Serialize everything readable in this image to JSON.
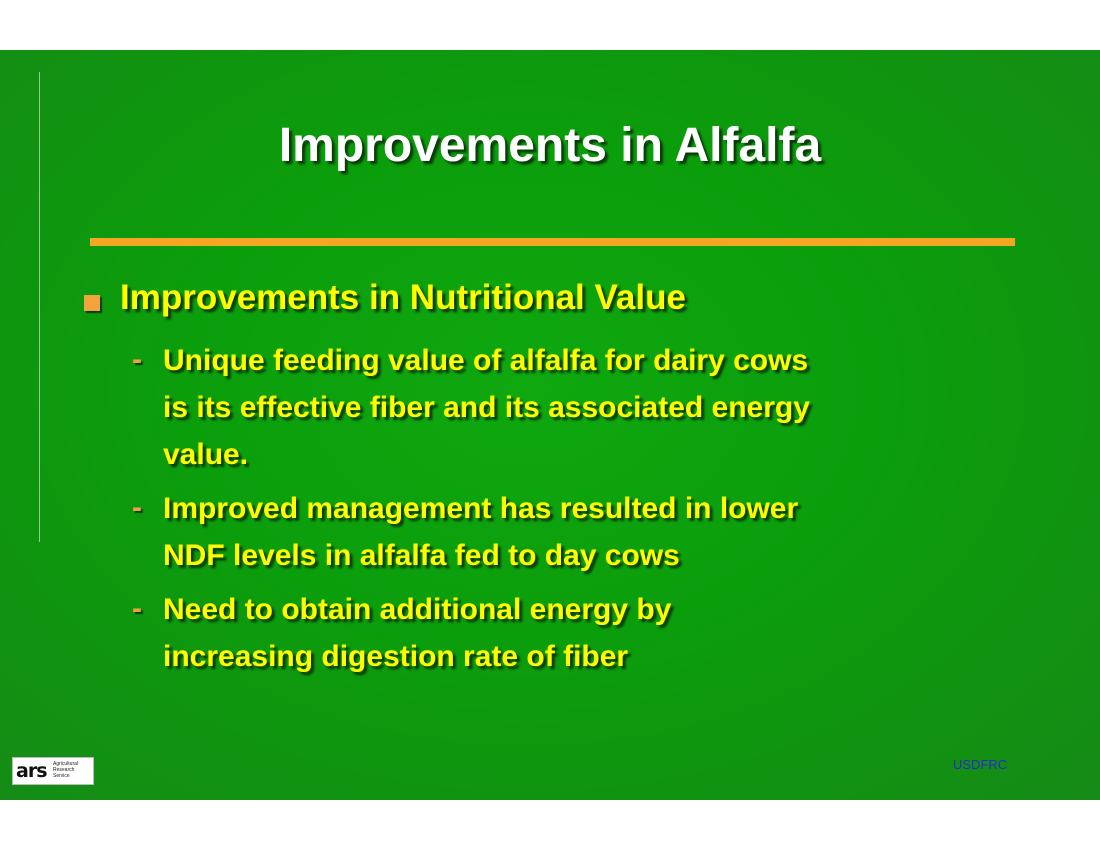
{
  "slide": {
    "title": "Improvements in Alfalfa",
    "bullet": "Improvements in Nutritional Value",
    "subpoints": [
      {
        "dash": "-",
        "lines": [
          "Unique feeding value of alfalfa for dairy cows",
          "is its effective fiber and its associated energy",
          "value."
        ]
      },
      {
        "dash": "-",
        "lines": [
          "Improved management has resulted in lower",
          "NDF levels in alfalfa fed to day cows"
        ]
      },
      {
        "dash": "-",
        "lines": [
          "Need to obtain additional energy by",
          "increasing digestion rate of fiber"
        ]
      }
    ]
  },
  "logo": {
    "mark": "ars",
    "lines": [
      "Agricultural",
      "Research",
      "Service"
    ]
  },
  "footer": {
    "text": "USDFRC"
  },
  "colors": {
    "background": "#0b9d0b",
    "title": "#ffffff",
    "accent_rule": "#f5a623",
    "body_text": "#ffff00",
    "footer_text": "#2a2acc"
  }
}
